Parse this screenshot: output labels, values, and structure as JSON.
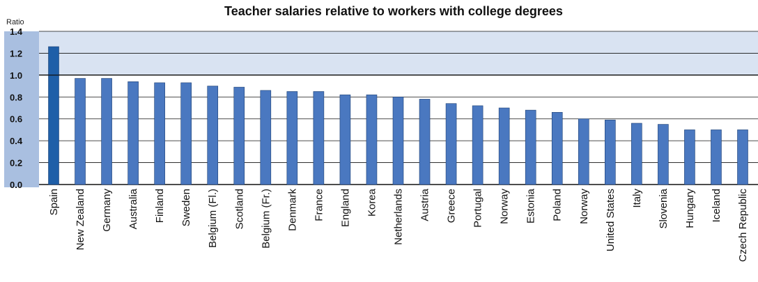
{
  "chart_data": {
    "type": "bar",
    "title": "Teacher salaries relative to workers with college degrees",
    "ylabel": "Ratio",
    "xlabel": "",
    "ylim": [
      0,
      1.4
    ],
    "yticks": [
      "0.0",
      "0.2",
      "0.4",
      "0.6",
      "0.8",
      "1.0",
      "1.2",
      "1.4"
    ],
    "yticks_values": [
      0,
      0.2,
      0.4,
      0.6,
      0.8,
      1.0,
      1.2,
      1.4
    ],
    "grid": true,
    "legend": "none",
    "highlight_band": [
      1.0,
      1.4
    ],
    "categories": [
      "Spain",
      "New Zealand",
      "Germany",
      "Australia",
      "Finland",
      "Sweden",
      "Belgium (Fl.)",
      "Scotland",
      "Belgium (Fr.)",
      "Denmark",
      "France",
      "England",
      "Korea",
      "Netherlands",
      "Austria",
      "Greece",
      "Portugal",
      "Norway",
      "Estonia",
      "Poland",
      "Norway",
      "United States",
      "Italy",
      "Slovenia",
      "Hungary",
      "Iceland",
      "Czech Republic"
    ],
    "values": [
      1.26,
      0.97,
      0.97,
      0.94,
      0.93,
      0.93,
      0.9,
      0.89,
      0.86,
      0.85,
      0.85,
      0.82,
      0.82,
      0.8,
      0.78,
      0.74,
      0.72,
      0.7,
      0.68,
      0.66,
      0.6,
      0.59,
      0.56,
      0.55,
      0.5,
      0.5,
      0.5
    ],
    "colors": {
      "bar": "#4a78c0",
      "bar_highlight": "#1f5fa8",
      "bar_stroke": "#1c3f73",
      "axis_bg": "#a9bfe0",
      "band": "#d9e3f2",
      "grid": "#111111"
    }
  }
}
